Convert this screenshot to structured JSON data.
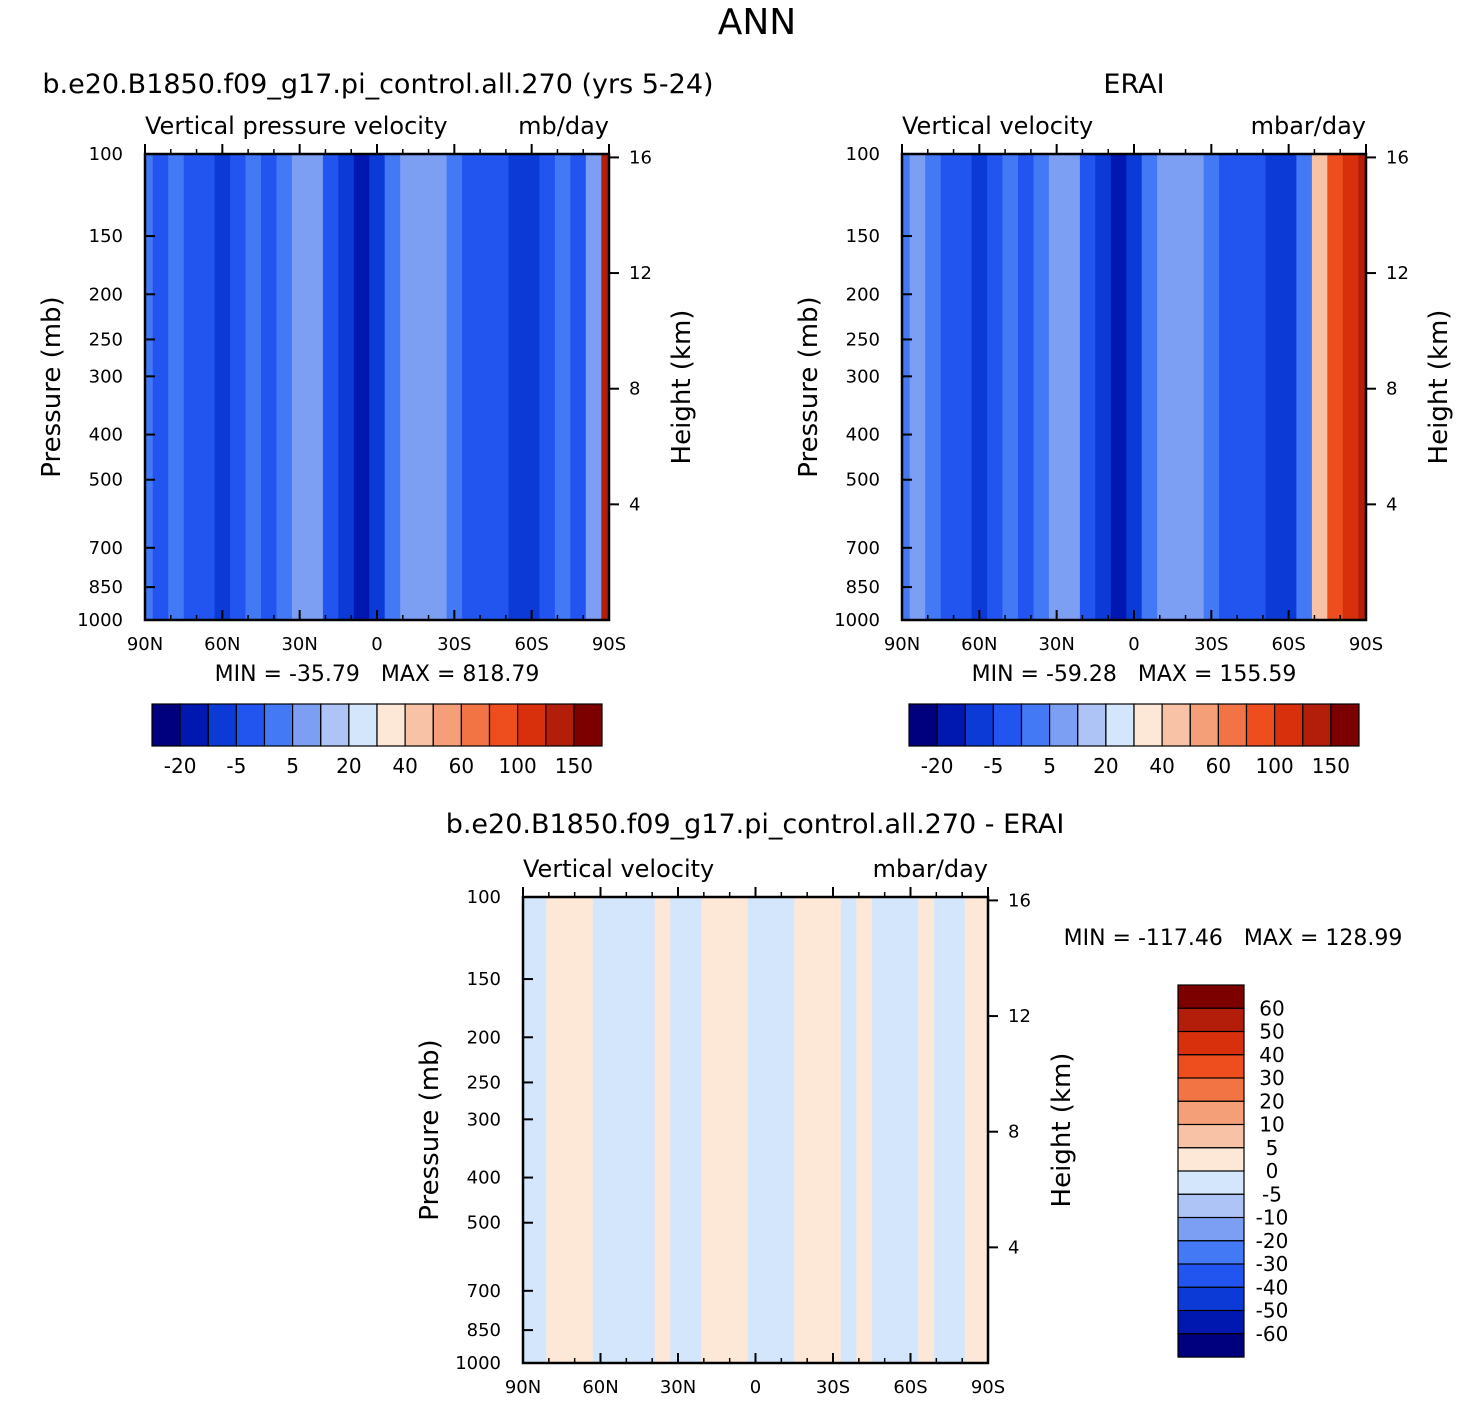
{
  "figure_title": "ANN",
  "chart_data": [
    {
      "type": "heatmap",
      "title": "b.e20.B1850.f09_g17.pi_control.all.270 (yrs 5-24)",
      "subtitle_left": "Vertical pressure velocity",
      "subtitle_right": "mb/day",
      "xlabel": "",
      "ylabel": "Pressure (mb)",
      "y2label": "Height (km)",
      "x_ticks": [
        "90N",
        "60N",
        "30N",
        "0",
        "30S",
        "60S",
        "90S"
      ],
      "y_ticks": [
        100,
        150,
        200,
        250,
        300,
        400,
        500,
        700,
        850,
        1000
      ],
      "y2_ticks": [
        16,
        12,
        8,
        4
      ],
      "ylim": [
        1000,
        100
      ],
      "y_scale": "log",
      "stats": "MIN = -35.79   MAX = 818.79",
      "colorbar": {
        "orientation": "horizontal",
        "labels": [
          "-20",
          "-5",
          "5",
          "20",
          "40",
          "60",
          "100",
          "150"
        ]
      },
      "bands": [
        {
          "lat": 90,
          "value": -4
        },
        {
          "lat": 84,
          "value": -6
        },
        {
          "lat": 78,
          "value": -3
        },
        {
          "lat": 72,
          "value": -6
        },
        {
          "lat": 66,
          "value": -9
        },
        {
          "lat": 60,
          "value": -12
        },
        {
          "lat": 54,
          "value": -7
        },
        {
          "lat": 48,
          "value": -3
        },
        {
          "lat": 42,
          "value": -6
        },
        {
          "lat": 36,
          "value": -2
        },
        {
          "lat": 30,
          "value": 4
        },
        {
          "lat": 24,
          "value": 1
        },
        {
          "lat": 18,
          "value": -6
        },
        {
          "lat": 12,
          "value": -11
        },
        {
          "lat": 6,
          "value": -27
        },
        {
          "lat": 0,
          "value": -13
        },
        {
          "lat": -6,
          "value": -5
        },
        {
          "lat": -12,
          "value": 1
        },
        {
          "lat": -18,
          "value": 3
        },
        {
          "lat": -24,
          "value": 2
        },
        {
          "lat": -30,
          "value": -1
        },
        {
          "lat": -36,
          "value": -6
        },
        {
          "lat": -42,
          "value": -7
        },
        {
          "lat": -48,
          "value": -9
        },
        {
          "lat": -54,
          "value": -15
        },
        {
          "lat": -60,
          "value": -18
        },
        {
          "lat": -66,
          "value": -8
        },
        {
          "lat": -72,
          "value": -3
        },
        {
          "lat": -78,
          "value": -6
        },
        {
          "lat": -84,
          "value": 2
        },
        {
          "lat": -90,
          "value": 120
        }
      ]
    },
    {
      "type": "heatmap",
      "title": "ERAI",
      "subtitle_left": "Vertical velocity",
      "subtitle_right": "mbar/day",
      "xlabel": "",
      "ylabel": "Pressure (mb)",
      "y2label": "Height (km)",
      "x_ticks": [
        "90N",
        "60N",
        "30N",
        "0",
        "30S",
        "60S",
        "90S"
      ],
      "y_ticks": [
        100,
        150,
        200,
        250,
        300,
        400,
        500,
        700,
        850,
        1000
      ],
      "y2_ticks": [
        16,
        12,
        8,
        4
      ],
      "ylim": [
        1000,
        100
      ],
      "y_scale": "log",
      "stats": "MIN = -59.28   MAX = 155.59",
      "colorbar": {
        "orientation": "horizontal",
        "labels": [
          "-20",
          "-5",
          "5",
          "20",
          "40",
          "60",
          "100",
          "150"
        ]
      },
      "bands": [
        {
          "lat": 90,
          "value": -4
        },
        {
          "lat": 84,
          "value": 1
        },
        {
          "lat": 78,
          "value": -3
        },
        {
          "lat": 72,
          "value": -6
        },
        {
          "lat": 66,
          "value": -9
        },
        {
          "lat": 60,
          "value": -14
        },
        {
          "lat": 54,
          "value": -7
        },
        {
          "lat": 48,
          "value": -3
        },
        {
          "lat": 42,
          "value": -6
        },
        {
          "lat": 36,
          "value": -2
        },
        {
          "lat": 30,
          "value": 4
        },
        {
          "lat": 24,
          "value": 1
        },
        {
          "lat": 18,
          "value": -6
        },
        {
          "lat": 12,
          "value": -13
        },
        {
          "lat": 6,
          "value": -30
        },
        {
          "lat": 0,
          "value": -13
        },
        {
          "lat": -6,
          "value": -5
        },
        {
          "lat": -12,
          "value": 1
        },
        {
          "lat": -18,
          "value": 3
        },
        {
          "lat": -24,
          "value": 2
        },
        {
          "lat": -30,
          "value": -1
        },
        {
          "lat": -36,
          "value": -6
        },
        {
          "lat": -42,
          "value": -7
        },
        {
          "lat": -48,
          "value": -9
        },
        {
          "lat": -54,
          "value": -13
        },
        {
          "lat": -60,
          "value": -15
        },
        {
          "lat": -66,
          "value": -4
        },
        {
          "lat": -72,
          "value": 30
        },
        {
          "lat": -78,
          "value": 60
        },
        {
          "lat": -84,
          "value": 80
        },
        {
          "lat": -90,
          "value": 100
        }
      ]
    },
    {
      "type": "heatmap",
      "title": "b.e20.B1850.f09_g17.pi_control.all.270 - ERAI",
      "subtitle_left": "Vertical velocity",
      "subtitle_right": "mbar/day",
      "xlabel": "",
      "ylabel": "Pressure (mb)",
      "y2label": "Height (km)",
      "x_ticks": [
        "90N",
        "60N",
        "30N",
        "0",
        "30S",
        "60S",
        "90S"
      ],
      "y_ticks": [
        100,
        150,
        200,
        250,
        300,
        400,
        500,
        700,
        850,
        1000
      ],
      "y2_ticks": [
        16,
        12,
        8,
        4
      ],
      "ylim": [
        1000,
        100
      ],
      "y_scale": "log",
      "stats": "MIN = -117.46   MAX = 128.99",
      "colorbar": {
        "orientation": "vertical",
        "labels": [
          "60",
          "50",
          "40",
          "30",
          "20",
          "10",
          "5",
          "0",
          "-5",
          "-10",
          "-20",
          "-30",
          "-40",
          "-50",
          "-60"
        ]
      },
      "bands": [
        {
          "lat": 90,
          "value": -2
        },
        {
          "lat": 84,
          "value": -2
        },
        {
          "lat": 78,
          "value": 2
        },
        {
          "lat": 72,
          "value": 2
        },
        {
          "lat": 66,
          "value": 2
        },
        {
          "lat": 60,
          "value": -2
        },
        {
          "lat": 54,
          "value": -2
        },
        {
          "lat": 48,
          "value": -2
        },
        {
          "lat": 42,
          "value": -2
        },
        {
          "lat": 36,
          "value": 2
        },
        {
          "lat": 30,
          "value": -2
        },
        {
          "lat": 24,
          "value": -2
        },
        {
          "lat": 18,
          "value": 2
        },
        {
          "lat": 12,
          "value": 2
        },
        {
          "lat": 6,
          "value": 2
        },
        {
          "lat": 0,
          "value": -2
        },
        {
          "lat": -6,
          "value": -2
        },
        {
          "lat": -12,
          "value": -2
        },
        {
          "lat": -18,
          "value": 2
        },
        {
          "lat": -24,
          "value": 2
        },
        {
          "lat": -30,
          "value": 2
        },
        {
          "lat": -36,
          "value": -2
        },
        {
          "lat": -42,
          "value": 2
        },
        {
          "lat": -48,
          "value": -2
        },
        {
          "lat": -54,
          "value": -2
        },
        {
          "lat": -60,
          "value": -2
        },
        {
          "lat": -66,
          "value": 2
        },
        {
          "lat": -72,
          "value": -2
        },
        {
          "lat": -78,
          "value": -2
        },
        {
          "lat": -84,
          "value": 2
        },
        {
          "lat": -90,
          "value": 2
        }
      ]
    }
  ],
  "colors": {
    "scale_main": [
      "#00007f",
      "#0017b0",
      "#0b3ad6",
      "#2255ef",
      "#4479f5",
      "#7c9ff3",
      "#aec4f6",
      "#d4e6fb",
      "#fde8d8",
      "#f8c2a6",
      "#f59f79",
      "#f27445",
      "#ee4d1d",
      "#d8300c",
      "#b21e0a",
      "#7d0000"
    ],
    "scale_diff": [
      "#00007f",
      "#0017b0",
      "#0b3ad6",
      "#2255ef",
      "#4479f5",
      "#7c9ff3",
      "#aec4f6",
      "#d4e6fb",
      "#fde8d8",
      "#f8c2a6",
      "#f59f79",
      "#f27445",
      "#ee4d1d",
      "#d8300c",
      "#b21e0a",
      "#7d0000"
    ]
  }
}
